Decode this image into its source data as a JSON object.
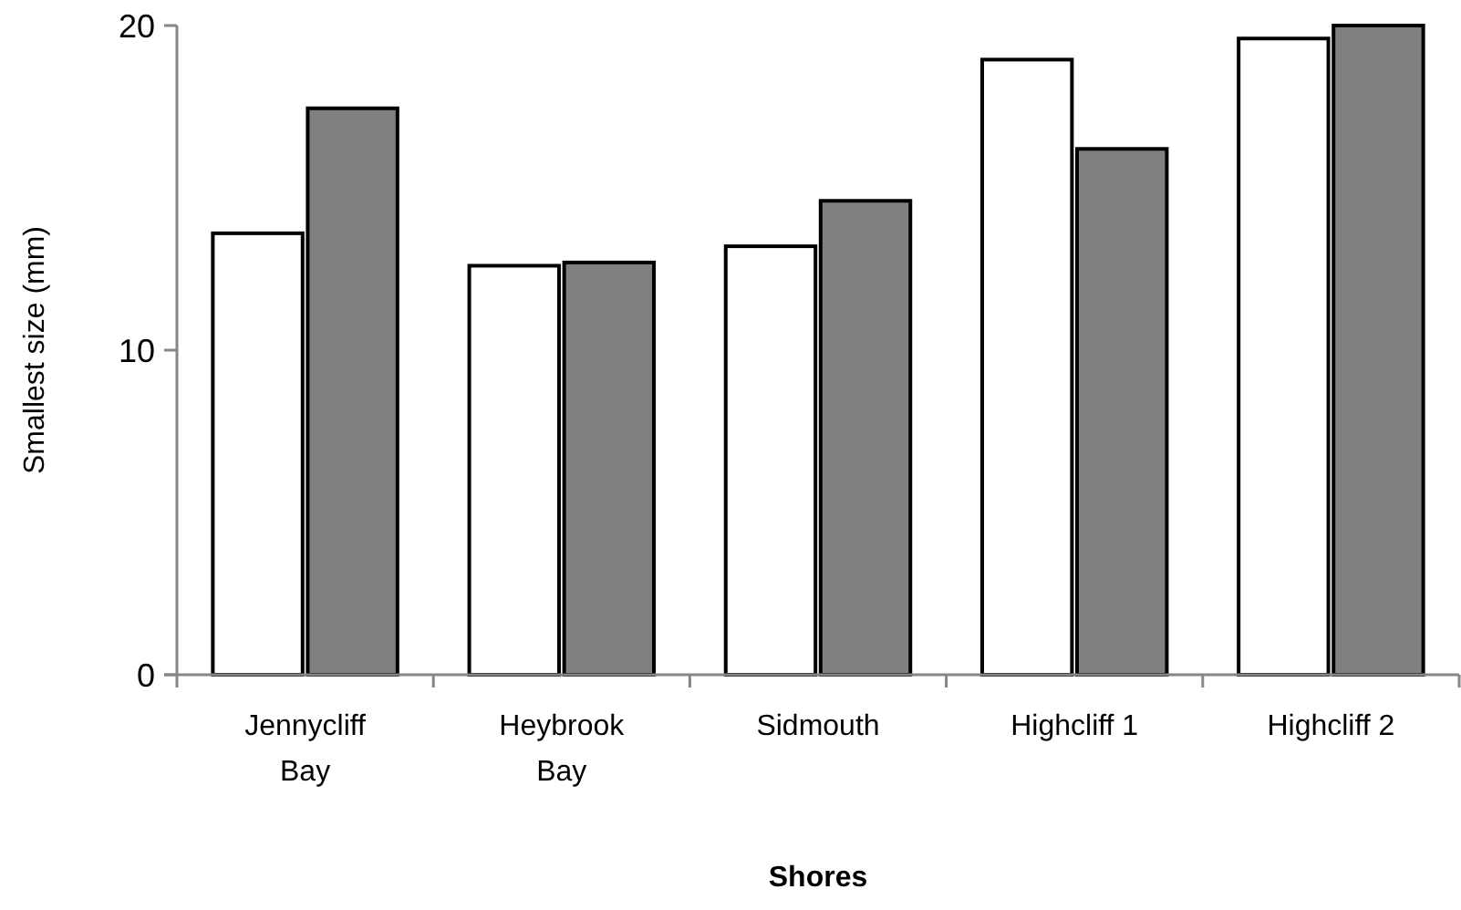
{
  "chart_data": {
    "type": "bar",
    "xlabel": "Shores",
    "ylabel": "Smallest size (mm)",
    "categories": [
      "Jennycliff Bay",
      "Heybrook Bay",
      "Sidmouth",
      "Highcliff 1",
      "Highcliff 2"
    ],
    "series": [
      {
        "color": "#ffffff",
        "values": [
          13.6,
          12.6,
          13.2,
          18.95,
          19.6
        ]
      },
      {
        "color": "#808080",
        "values": [
          17.45,
          12.7,
          14.6,
          16.2,
          20
        ]
      }
    ],
    "ylim": [
      0,
      20
    ],
    "yticks": [
      0,
      10,
      20
    ],
    "grid": false
  }
}
